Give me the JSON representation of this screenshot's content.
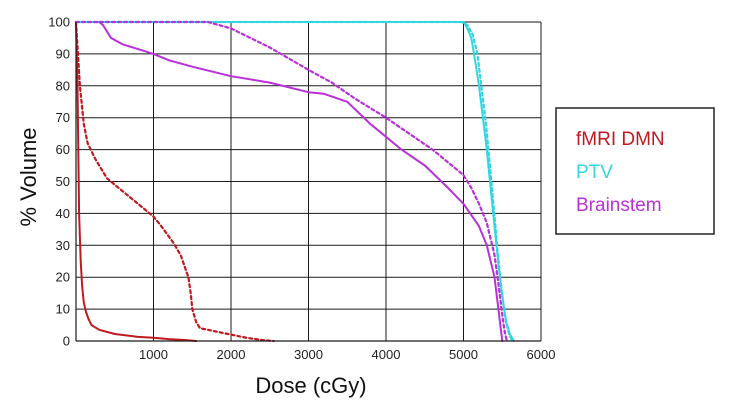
{
  "chart_data": {
    "type": "line",
    "xlabel": "Dose (cGy)",
    "ylabel": "% Volume",
    "xlim": [
      0,
      6000
    ],
    "ylim": [
      0,
      100
    ],
    "x_ticks": [
      1000,
      2000,
      3000,
      4000,
      5000,
      6000
    ],
    "y_ticks": [
      0,
      10,
      20,
      30,
      40,
      50,
      60,
      70,
      80,
      90,
      100
    ],
    "grid": true,
    "legend_placement": "right",
    "legend": [
      {
        "label": "fMRI DMN",
        "color": "#c0191e"
      },
      {
        "label": "PTV",
        "color": "#33d6e0"
      },
      {
        "label": "Brainstem",
        "color": "#b830d8"
      }
    ],
    "series": [
      {
        "name": "fMRI DMN",
        "style": "solid",
        "color": "#c0191e",
        "points": [
          [
            0,
            100
          ],
          [
            20,
            80
          ],
          [
            40,
            40
          ],
          [
            60,
            25
          ],
          [
            80,
            17
          ],
          [
            100,
            12
          ],
          [
            130,
            9
          ],
          [
            160,
            7
          ],
          [
            200,
            5
          ],
          [
            300,
            3.5
          ],
          [
            500,
            2.2
          ],
          [
            800,
            1.3
          ],
          [
            1000,
            1.0
          ],
          [
            1200,
            0.6
          ],
          [
            1400,
            0.3
          ],
          [
            1550,
            0
          ]
        ]
      },
      {
        "name": "fMRI DMN",
        "style": "dashed",
        "color": "#c0191e",
        "points": [
          [
            0,
            100
          ],
          [
            50,
            80
          ],
          [
            100,
            68
          ],
          [
            150,
            62
          ],
          [
            250,
            57
          ],
          [
            400,
            51
          ],
          [
            600,
            47
          ],
          [
            800,
            43
          ],
          [
            1000,
            39
          ],
          [
            1100,
            36
          ],
          [
            1250,
            31
          ],
          [
            1350,
            27
          ],
          [
            1450,
            20
          ],
          [
            1480,
            15
          ],
          [
            1500,
            10
          ],
          [
            1550,
            6
          ],
          [
            1600,
            4
          ],
          [
            1800,
            3
          ],
          [
            2000,
            2
          ],
          [
            2200,
            1
          ],
          [
            2400,
            0.3
          ],
          [
            2550,
            0
          ]
        ]
      },
      {
        "name": "PTV",
        "style": "solid",
        "color": "#33d6e0",
        "points": [
          [
            0,
            100
          ],
          [
            5000,
            100
          ],
          [
            5050,
            98
          ],
          [
            5100,
            95
          ],
          [
            5150,
            88
          ],
          [
            5200,
            80
          ],
          [
            5250,
            70
          ],
          [
            5300,
            60
          ],
          [
            5350,
            48
          ],
          [
            5400,
            36
          ],
          [
            5450,
            24
          ],
          [
            5500,
            14
          ],
          [
            5550,
            6
          ],
          [
            5600,
            2
          ],
          [
            5650,
            0
          ]
        ]
      },
      {
        "name": "PTV",
        "style": "dashed",
        "color": "#33d6e0",
        "points": [
          [
            0,
            100
          ],
          [
            4980,
            100
          ],
          [
            5050,
            99
          ],
          [
            5120,
            96
          ],
          [
            5180,
            90
          ],
          [
            5230,
            80
          ],
          [
            5290,
            68
          ],
          [
            5340,
            55
          ],
          [
            5390,
            42
          ],
          [
            5440,
            28
          ],
          [
            5490,
            16
          ],
          [
            5540,
            7
          ],
          [
            5590,
            2
          ],
          [
            5630,
            0
          ]
        ]
      },
      {
        "name": "Brainstem",
        "style": "solid",
        "color": "#b830d8",
        "points": [
          [
            300,
            100
          ],
          [
            350,
            99
          ],
          [
            450,
            95
          ],
          [
            600,
            93
          ],
          [
            800,
            91.5
          ],
          [
            1000,
            90
          ],
          [
            1200,
            88
          ],
          [
            1500,
            86
          ],
          [
            2000,
            83
          ],
          [
            2500,
            81
          ],
          [
            3000,
            78
          ],
          [
            3200,
            77.5
          ],
          [
            3500,
            75
          ],
          [
            3800,
            68
          ],
          [
            4000,
            64
          ],
          [
            4200,
            60
          ],
          [
            4500,
            55
          ],
          [
            4800,
            48
          ],
          [
            5000,
            43
          ],
          [
            5200,
            36
          ],
          [
            5300,
            30
          ],
          [
            5400,
            20
          ],
          [
            5450,
            10
          ],
          [
            5480,
            4
          ],
          [
            5500,
            0
          ]
        ]
      },
      {
        "name": "Brainstem",
        "style": "dashed",
        "color": "#b830d8",
        "points": [
          [
            0,
            100
          ],
          [
            1700,
            100
          ],
          [
            2000,
            98
          ],
          [
            2500,
            92
          ],
          [
            3000,
            85
          ],
          [
            3300,
            81
          ],
          [
            3600,
            76
          ],
          [
            4000,
            70
          ],
          [
            4300,
            65
          ],
          [
            4600,
            60
          ],
          [
            5000,
            52
          ],
          [
            5100,
            48
          ],
          [
            5200,
            43
          ],
          [
            5300,
            37
          ],
          [
            5400,
            27
          ],
          [
            5450,
            18
          ],
          [
            5500,
            8
          ],
          [
            5530,
            3
          ],
          [
            5560,
            0
          ]
        ]
      }
    ]
  }
}
